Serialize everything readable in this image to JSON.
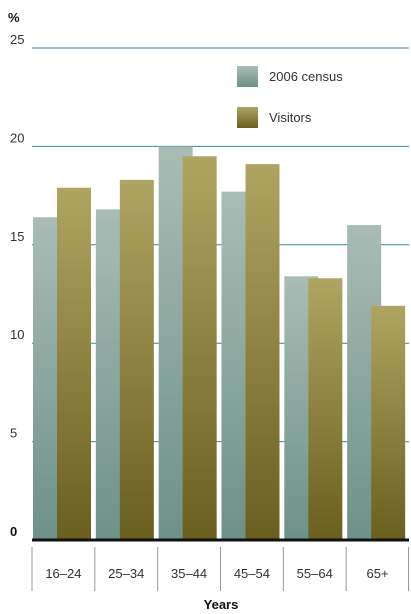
{
  "chart_data": {
    "type": "bar",
    "ylabel": "%",
    "xlabel": "Years",
    "categories": [
      "16–24",
      "25–34",
      "35–44",
      "45–54",
      "55–64",
      "65+"
    ],
    "series": [
      {
        "name": "2006 census",
        "values": [
          16.4,
          16.8,
          20.0,
          17.7,
          13.4,
          16.0
        ],
        "color": "#9fb5ad"
      },
      {
        "name": "Visitors",
        "values": [
          17.9,
          18.3,
          19.5,
          19.1,
          13.3,
          11.9
        ],
        "color": "#a49a52"
      }
    ],
    "ylim": [
      0,
      25
    ],
    "yticks": [
      0,
      5,
      10,
      15,
      20,
      25
    ],
    "grid": true,
    "legend_position": "top-right",
    "colors": {
      "gridline": "#2f8a9a",
      "baseline": "#111111",
      "census_bottom": "#6d9189",
      "visitors_bottom": "#6a5f1e"
    }
  }
}
